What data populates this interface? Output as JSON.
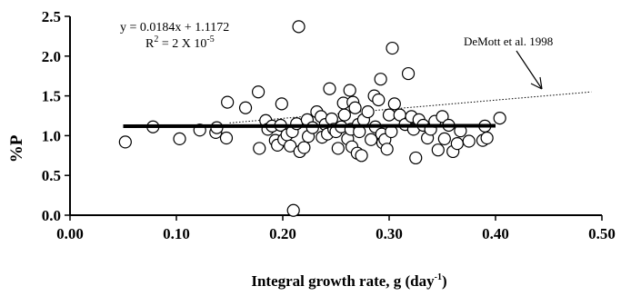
{
  "chart_data": {
    "type": "scatter",
    "xlabel": "Integral growth rate, g (day",
    "xlabel_sup": "-1",
    "xlabel_end": ")",
    "ylabel": "%P",
    "xlim": [
      0.0,
      0.5
    ],
    "ylim": [
      0.0,
      2.5
    ],
    "x_ticks": [
      "0.00",
      "0.10",
      "0.20",
      "0.30",
      "0.40",
      "0.50"
    ],
    "y_ticks": [
      "0.0",
      "0.5",
      "1.0",
      "1.5",
      "2.0",
      "2.5"
    ],
    "grid": false,
    "equation": "y = 0.0184x + 1.1172",
    "r2_prefix": "R",
    "r2_sup": "2",
    "r2_value": " = 2 X 10",
    "r2_exp": "-5",
    "annotation": "DeMott et al. 1998",
    "fit_line": {
      "slope": 0.0184,
      "intercept": 1.1172,
      "x_range": [
        0.05,
        0.4
      ]
    },
    "reference_line": {
      "name": "DeMott et al. 1998",
      "points": [
        [
          0.15,
          1.16
        ],
        [
          0.49,
          1.55
        ]
      ],
      "style": "dotted"
    },
    "points": [
      [
        0.052,
        0.92
      ],
      [
        0.078,
        1.11
      ],
      [
        0.103,
        0.96
      ],
      [
        0.122,
        1.07
      ],
      [
        0.137,
        1.04
      ],
      [
        0.138,
        1.1
      ],
      [
        0.147,
        0.97
      ],
      [
        0.148,
        1.42
      ],
      [
        0.165,
        1.35
      ],
      [
        0.177,
        1.55
      ],
      [
        0.178,
        0.84
      ],
      [
        0.184,
        1.19
      ],
      [
        0.186,
        1.08
      ],
      [
        0.19,
        1.12
      ],
      [
        0.193,
        0.94
      ],
      [
        0.195,
        0.88
      ],
      [
        0.198,
        1.13
      ],
      [
        0.199,
        1.4
      ],
      [
        0.201,
        0.95
      ],
      [
        0.204,
        1.01
      ],
      [
        0.207,
        0.87
      ],
      [
        0.209,
        1.05
      ],
      [
        0.21,
        0.06
      ],
      [
        0.213,
        1.15
      ],
      [
        0.215,
        2.37
      ],
      [
        0.216,
        0.8
      ],
      [
        0.22,
        0.85
      ],
      [
        0.223,
        1.2
      ],
      [
        0.224,
        0.99
      ],
      [
        0.228,
        1.1
      ],
      [
        0.232,
        1.3
      ],
      [
        0.236,
        1.24
      ],
      [
        0.237,
        0.98
      ],
      [
        0.24,
        1.14
      ],
      [
        0.242,
        1.02
      ],
      [
        0.244,
        1.59
      ],
      [
        0.246,
        1.21
      ],
      [
        0.248,
        1.08
      ],
      [
        0.25,
        1.05
      ],
      [
        0.252,
        0.84
      ],
      [
        0.255,
        1.11
      ],
      [
        0.257,
        1.41
      ],
      [
        0.258,
        1.26
      ],
      [
        0.261,
        0.96
      ],
      [
        0.263,
        1.57
      ],
      [
        0.264,
        1.08
      ],
      [
        0.265,
        0.86
      ],
      [
        0.266,
        1.42
      ],
      [
        0.268,
        1.35
      ],
      [
        0.27,
        0.78
      ],
      [
        0.271,
        1.14
      ],
      [
        0.272,
        1.05
      ],
      [
        0.274,
        0.75
      ],
      [
        0.276,
        1.2
      ],
      [
        0.28,
        1.3
      ],
      [
        0.283,
        0.95
      ],
      [
        0.286,
        1.5
      ],
      [
        0.287,
        1.11
      ],
      [
        0.29,
        1.45
      ],
      [
        0.292,
        1.71
      ],
      [
        0.293,
        1.02
      ],
      [
        0.294,
        0.91
      ],
      [
        0.296,
        0.95
      ],
      [
        0.298,
        0.83
      ],
      [
        0.3,
        1.26
      ],
      [
        0.302,
        1.05
      ],
      [
        0.303,
        2.1
      ],
      [
        0.305,
        1.4
      ],
      [
        0.31,
        1.26
      ],
      [
        0.315,
        1.14
      ],
      [
        0.318,
        1.78
      ],
      [
        0.321,
        1.24
      ],
      [
        0.323,
        1.08
      ],
      [
        0.325,
        0.72
      ],
      [
        0.328,
        1.2
      ],
      [
        0.332,
        1.13
      ],
      [
        0.336,
        0.97
      ],
      [
        0.339,
        1.08
      ],
      [
        0.343,
        1.18
      ],
      [
        0.346,
        0.82
      ],
      [
        0.35,
        1.24
      ],
      [
        0.352,
        0.96
      ],
      [
        0.356,
        1.13
      ],
      [
        0.36,
        0.8
      ],
      [
        0.364,
        0.9
      ],
      [
        0.367,
        1.06
      ],
      [
        0.375,
        0.93
      ],
      [
        0.388,
        0.94
      ],
      [
        0.39,
        1.12
      ],
      [
        0.392,
        0.97
      ],
      [
        0.404,
        1.22
      ]
    ]
  }
}
